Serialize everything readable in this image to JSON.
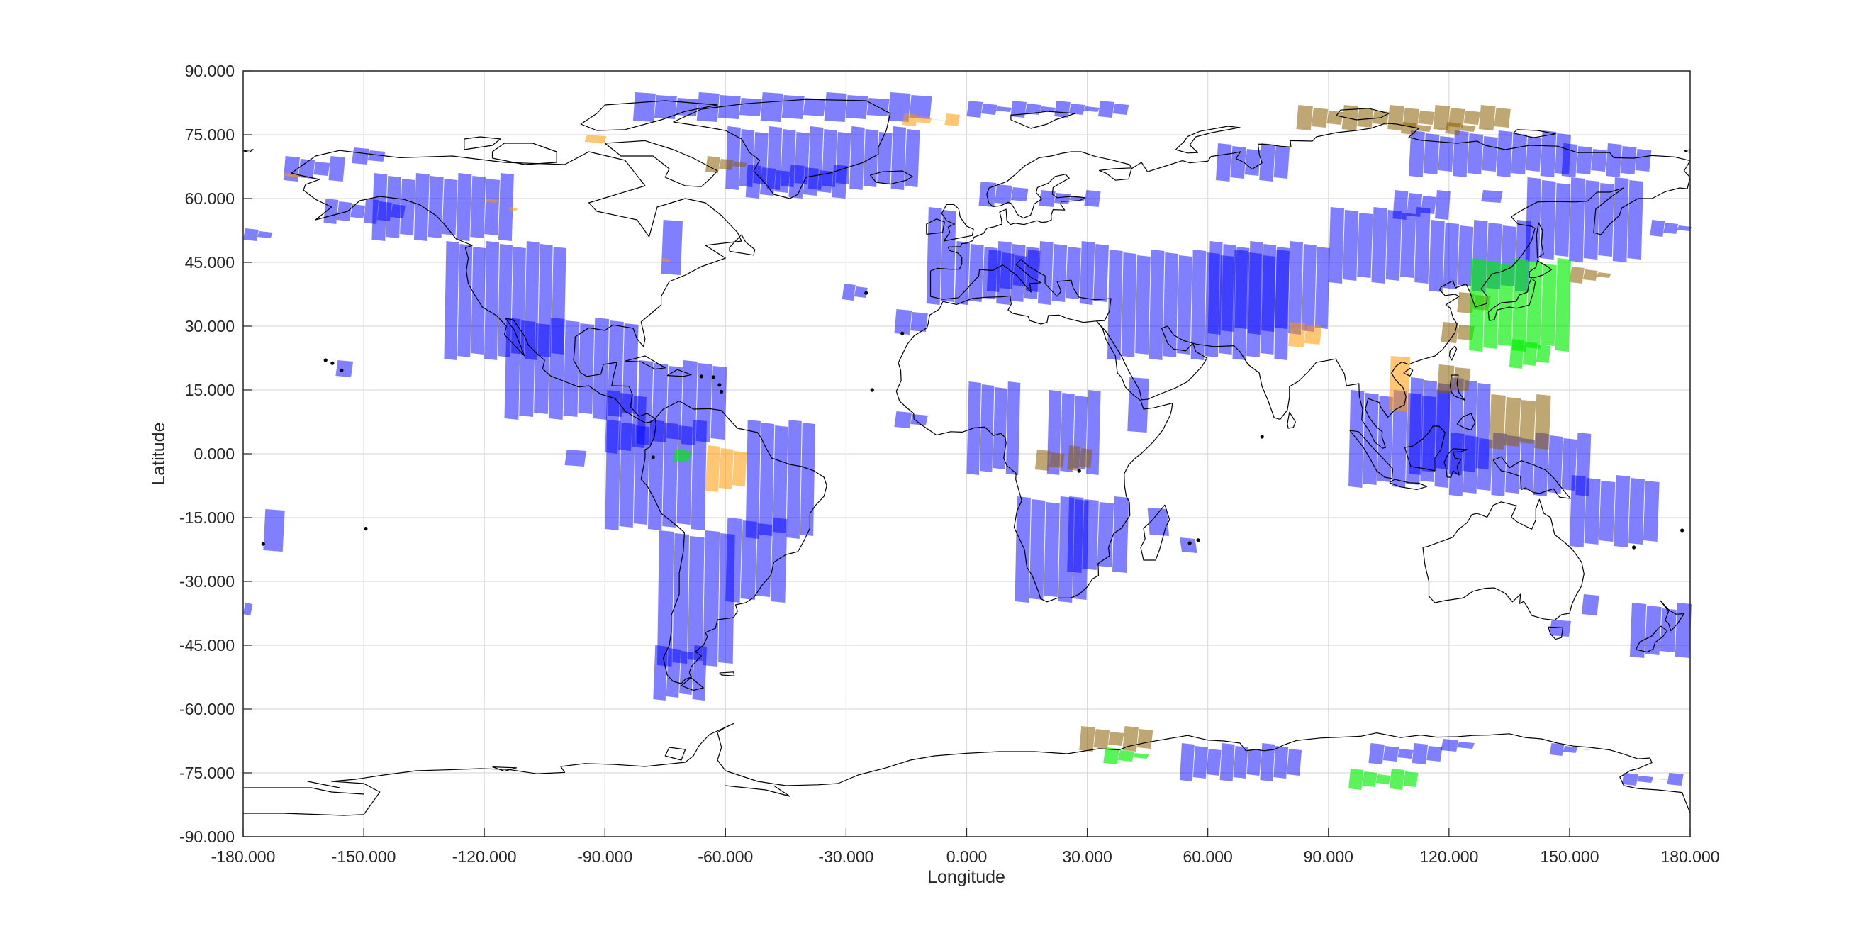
{
  "chart_data": {
    "type": "scatter",
    "xlabel": "Longitude",
    "ylabel": "Latitude",
    "xlim": [
      -180,
      180
    ],
    "ylim": [
      -90,
      90
    ],
    "grid": true,
    "x_ticks": [
      "-180.000",
      "-150.000",
      "-120.000",
      "-90.000",
      "-60.000",
      "-30.000",
      "0.000",
      "30.000",
      "60.000",
      "90.000",
      "120.000",
      "150.000",
      "180.000"
    ],
    "y_ticks": [
      "90.000",
      "75.000",
      "60.000",
      "45.000",
      "30.000",
      "15.000",
      "0.000",
      "-15.000",
      "-30.000",
      "-45.000",
      "-60.000",
      "-75.000",
      "-90.000"
    ],
    "colors": {
      "blue": "#0000ff",
      "orange": "#ff9900",
      "brown": "#8b5e00",
      "green": "#00ee00",
      "coast": "#000000",
      "grid": "#dcdcdc",
      "axis": "#262626"
    },
    "series": [
      {
        "color_key": "blue",
        "opacity": 0.5,
        "regions": [
          {
            "lon": [
              -83,
              -9
            ],
            "lat": [
              78,
              85
            ]
          },
          {
            "lon": [
              0,
              40
            ],
            "lat": [
              79,
              83
            ]
          },
          {
            "lon": [
              -60,
              -12
            ],
            "lat": [
              62,
              77
            ]
          },
          {
            "lon": [
              -55,
              -30
            ],
            "lat": [
              60,
              68
            ]
          },
          {
            "lon": [
              -170,
              -155
            ],
            "lat": [
              64,
              70
            ]
          },
          {
            "lon": [
              -153,
              -145
            ],
            "lat": [
              68,
              72
            ]
          },
          {
            "lon": [
              -160,
              -140
            ],
            "lat": [
              54,
              60
            ]
          },
          {
            "lon": [
              -180,
              -173
            ],
            "lat": [
              50,
              53
            ]
          },
          {
            "lon": [
              -148,
              -113
            ],
            "lat": [
              50,
              66
            ]
          },
          {
            "lon": [
              -130,
              -100
            ],
            "lat": [
              22,
              50
            ]
          },
          {
            "lon": [
              -115,
              -82
            ],
            "lat": [
              8,
              32
            ]
          },
          {
            "lon": [
              -90,
              -80
            ],
            "lat": [
              0,
              15
            ]
          },
          {
            "lon": [
              -82,
              -60
            ],
            "lat": [
              2,
              22
            ]
          },
          {
            "lon": [
              -90,
              -65
            ],
            "lat": [
              -18,
              8
            ]
          },
          {
            "lon": [
              -77,
              -58
            ],
            "lat": [
              -50,
              -18
            ]
          },
          {
            "lon": [
              -78,
              -65
            ],
            "lat": [
              -58,
              -45
            ]
          },
          {
            "lon": [
              -55,
              -38
            ],
            "lat": [
              -20,
              8
            ]
          },
          {
            "lon": [
              -60,
              -45
            ],
            "lat": [
              -35,
              -15
            ]
          },
          {
            "lon": [
              -175,
              -170
            ],
            "lat": [
              -23,
              -13
            ]
          },
          {
            "lon": [
              -157,
              -153
            ],
            "lat": [
              18,
              22
            ]
          },
          {
            "lon": [
              -76,
              -71
            ],
            "lat": [
              42,
              55
            ]
          },
          {
            "lon": [
              -100,
              -95
            ],
            "lat": [
              -3,
              1
            ]
          },
          {
            "lon": [
              -31,
              -25
            ],
            "lat": [
              36,
              40
            ]
          },
          {
            "lon": [
              -18,
              -10
            ],
            "lat": [
              28,
              34
            ]
          },
          {
            "lon": [
              -10,
              -3
            ],
            "lat": [
              35,
              58
            ]
          },
          {
            "lon": [
              -3,
              35
            ],
            "lat": [
              35,
              50
            ]
          },
          {
            "lon": [
              5,
              18
            ],
            "lat": [
              38,
              48
            ]
          },
          {
            "lon": [
              3,
              15
            ],
            "lat": [
              58,
              64
            ]
          },
          {
            "lon": [
              18,
              33
            ],
            "lat": [
              58,
              62
            ]
          },
          {
            "lon": [
              35,
              80
            ],
            "lat": [
              22,
              48
            ]
          },
          {
            "lon": [
              60,
              90
            ],
            "lat": [
              28,
              50
            ]
          },
          {
            "lon": [
              90,
              115
            ],
            "lat": [
              40,
              58
            ]
          },
          {
            "lon": [
              106,
              120
            ],
            "lat": [
              55,
              62
            ]
          },
          {
            "lon": [
              128,
              133
            ],
            "lat": [
              59,
              62
            ]
          },
          {
            "lon": [
              115,
              140
            ],
            "lat": [
              38,
              55
            ]
          },
          {
            "lon": [
              139,
              168
            ],
            "lat": [
              45,
              65
            ]
          },
          {
            "lon": [
              170,
              180
            ],
            "lat": [
              51,
              55
            ]
          },
          {
            "lon": [
              62,
              80
            ],
            "lat": [
              64,
              73
            ]
          },
          {
            "lon": [
              110,
              150
            ],
            "lat": [
              65,
              76
            ]
          },
          {
            "lon": [
              148,
              170
            ],
            "lat": [
              65,
              73
            ]
          },
          {
            "lon": [
              0,
              13
            ],
            "lat": [
              -5,
              17
            ]
          },
          {
            "lon": [
              -18,
              -10
            ],
            "lat": [
              6,
              10
            ]
          },
          {
            "lon": [
              20,
              33
            ],
            "lat": [
              -5,
              15
            ]
          },
          {
            "lon": [
              25,
              40
            ],
            "lat": [
              -28,
              -10
            ]
          },
          {
            "lon": [
              12,
              30
            ],
            "lat": [
              -35,
              -10
            ]
          },
          {
            "lon": [
              40,
              45
            ],
            "lat": [
              5,
              18
            ]
          },
          {
            "lon": [
              45,
              50
            ],
            "lat": [
              -13,
              -19
            ]
          },
          {
            "lon": [
              53,
              57
            ],
            "lat": [
              -20,
              -23
            ]
          },
          {
            "lon": [
              95,
              120
            ],
            "lat": [
              -8,
              15
            ]
          },
          {
            "lon": [
              110,
              130
            ],
            "lat": [
              -5,
              18
            ]
          },
          {
            "lon": [
              120,
              155
            ],
            "lat": [
              -10,
              5
            ]
          },
          {
            "lon": [
              150,
              172
            ],
            "lat": [
              -22,
              -5
            ]
          },
          {
            "lon": [
              165,
              180
            ],
            "lat": [
              -48,
              -35
            ]
          },
          {
            "lon": [
              -180,
              -178
            ],
            "lat": [
              -38,
              -35
            ]
          },
          {
            "lon": [
              153,
              157
            ],
            "lat": [
              -38,
              -33
            ]
          },
          {
            "lon": [
              145,
              150
            ],
            "lat": [
              -43,
              -39
            ]
          },
          {
            "lon": [
              53,
              83
            ],
            "lat": [
              -77,
              -68
            ]
          },
          {
            "lon": [
              100,
              118
            ],
            "lat": [
              -73,
              -68
            ]
          },
          {
            "lon": [
              118,
              126
            ],
            "lat": [
              -70,
              -67
            ]
          },
          {
            "lon": [
              145,
              155
            ],
            "lat": [
              -71,
              -68
            ]
          },
          {
            "lon": [
              163,
              178
            ],
            "lat": [
              -78,
              -75
            ]
          }
        ]
      },
      {
        "color_key": "orange",
        "opacity": 0.55,
        "regions": [
          {
            "lon": [
              -16,
              -2
            ],
            "lat": [
              77,
              80
            ]
          },
          {
            "lon": [
              -95,
              -90
            ],
            "lat": [
              73,
              75
            ]
          },
          {
            "lon": [
              -170,
              -166
            ],
            "lat": [
              65,
              66
            ]
          },
          {
            "lon": [
              -120,
              -117
            ],
            "lat": [
              59,
              60
            ]
          },
          {
            "lon": [
              -114,
              -112
            ],
            "lat": [
              57,
              58
            ]
          },
          {
            "lon": [
              -76,
              -74
            ],
            "lat": [
              45,
              46
            ]
          },
          {
            "lon": [
              -65,
              -55
            ],
            "lat": [
              -9,
              2
            ]
          },
          {
            "lon": [
              80,
              88
            ],
            "lat": [
              25,
              31
            ]
          },
          {
            "lon": [
              105,
              110
            ],
            "lat": [
              10,
              23
            ]
          }
        ]
      },
      {
        "color_key": "brown",
        "opacity": 0.55,
        "regions": [
          {
            "lon": [
              82,
              135
            ],
            "lat": [
              76,
              82
            ]
          },
          {
            "lon": [
              108,
              130
            ],
            "lat": [
              75,
              78
            ]
          },
          {
            "lon": [
              -65,
              -55
            ],
            "lat": [
              66,
              70
            ]
          },
          {
            "lon": [
              17,
              24
            ],
            "lat": [
              -4,
              1
            ]
          },
          {
            "lon": [
              25,
              31
            ],
            "lat": [
              -4,
              2
            ]
          },
          {
            "lon": [
              130,
              145
            ],
            "lat": [
              1,
              14
            ]
          },
          {
            "lon": [
              117,
              125
            ],
            "lat": [
              14,
              21
            ]
          },
          {
            "lon": [
              118,
              126
            ],
            "lat": [
              26,
              31
            ]
          },
          {
            "lon": [
              122,
              130
            ],
            "lat": [
              33,
              38
            ]
          },
          {
            "lon": [
              150,
              160
            ],
            "lat": [
              40,
              44
            ]
          },
          {
            "lon": [
              28,
              46
            ],
            "lat": [
              -70,
              -64
            ]
          }
        ]
      },
      {
        "color_key": "green",
        "opacity": 0.65,
        "regions": [
          {
            "lon": [
              125,
              150
            ],
            "lat": [
              24,
              46
            ]
          },
          {
            "lon": [
              135,
              145
            ],
            "lat": [
              20,
              27
            ]
          },
          {
            "lon": [
              -73,
              -69
            ],
            "lat": [
              -2,
              1
            ]
          },
          {
            "lon": [
              34,
              45
            ],
            "lat": [
              -73,
              -69
            ]
          },
          {
            "lon": [
              95,
              112
            ],
            "lat": [
              -79,
              -74
            ]
          }
        ]
      }
    ]
  }
}
